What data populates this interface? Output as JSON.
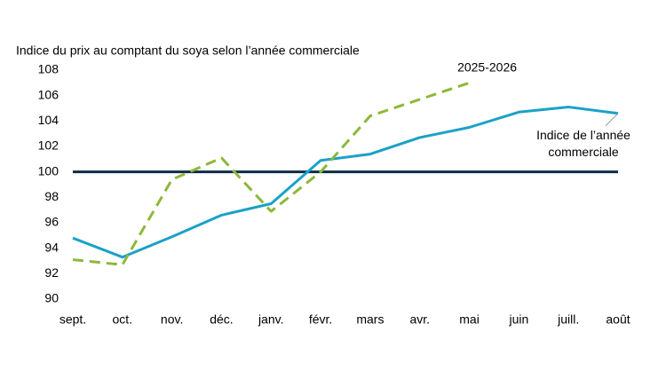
{
  "chart_data": {
    "type": "line",
    "title": "Indice du prix au comptant du soya selon l’année commerciale",
    "categories": [
      "sept.",
      "oct.",
      "nov.",
      "déc.",
      "janv.",
      "févr.",
      "mars",
      "avr.",
      "mai",
      "juin",
      "juill.",
      "août"
    ],
    "series": [
      {
        "name": "Indice de l’année commerciale",
        "color": "#1ba1c7",
        "dashed": false,
        "values": [
          94.8,
          93.3,
          94.9,
          96.6,
          97.5,
          100.9,
          101.4,
          102.7,
          103.5,
          104.7,
          105.1,
          104.6
        ]
      },
      {
        "name": "2025-2026",
        "color": "#8db83a",
        "dashed": true,
        "values": [
          93.1,
          92.7,
          99.4,
          101.1,
          96.9,
          100.0,
          104.4,
          105.7,
          107.0,
          null,
          null,
          null
        ]
      }
    ],
    "reference_line": {
      "value": 100,
      "color": "#0d2b45"
    },
    "ylim": [
      90,
      108
    ],
    "yticks": [
      90,
      92,
      94,
      96,
      98,
      100,
      102,
      104,
      106,
      108
    ],
    "grid": false
  }
}
